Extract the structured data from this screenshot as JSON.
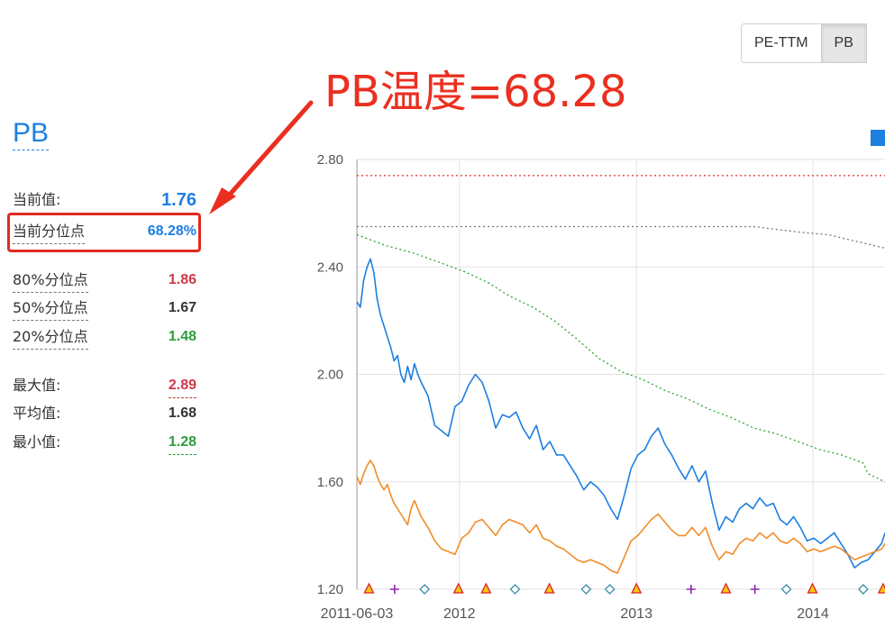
{
  "toggle": {
    "options": [
      "PE-TTM",
      "PB"
    ],
    "active_index": 1
  },
  "annotation": {
    "text": "PB温度=68.28",
    "color": "#ea2f20"
  },
  "stats": {
    "title": "PB",
    "current": {
      "label": "当前值:",
      "value": "1.76"
    },
    "current_pct": {
      "label": "当前分位点",
      "value": "68.28%"
    },
    "p80": {
      "label": "80%分位点",
      "value": "1.86"
    },
    "p50": {
      "label": "50%分位点",
      "value": "1.67"
    },
    "p20": {
      "label": "20%分位点",
      "value": "1.48"
    },
    "max": {
      "label": "最大值:",
      "value": "2.89"
    },
    "mean": {
      "label": "平均值:",
      "value": "1.68"
    },
    "min": {
      "label": "最小值:",
      "value": "1.28"
    }
  },
  "colors": {
    "blue": "#1d7fe0",
    "orange": "#f28c28",
    "green_dotted": "#2aa52a",
    "gray_dotted": "#777777",
    "red_dotted": "#e03030",
    "red_value": "#d0394a",
    "green_value": "#2e9c3c",
    "dark_value": "#333333"
  },
  "chart_data": {
    "type": "line",
    "y_ticks": [
      "2.80",
      "2.40",
      "2.00",
      "1.60",
      "1.20"
    ],
    "ylim": [
      1.2,
      2.8
    ],
    "x_ticks": [
      "2011-06-03",
      "2012",
      "2013",
      "2014"
    ],
    "x_tick_dates": [
      "2011-06-03",
      "2012-01-01",
      "2013-01-01",
      "2014-01-01"
    ],
    "grid": true,
    "series": [
      {
        "style": "solid",
        "color": "#1d7fe0",
        "points": [
          [
            "2011-06-03",
            2.27
          ],
          [
            "2011-06-10",
            2.25
          ],
          [
            "2011-06-17",
            2.35
          ],
          [
            "2011-06-24",
            2.4
          ],
          [
            "2011-07-01",
            2.43
          ],
          [
            "2011-07-08",
            2.38
          ],
          [
            "2011-07-15",
            2.28
          ],
          [
            "2011-07-22",
            2.22
          ],
          [
            "2011-07-29",
            2.18
          ],
          [
            "2011-08-05",
            2.14
          ],
          [
            "2011-08-12",
            2.1
          ],
          [
            "2011-08-19",
            2.05
          ],
          [
            "2011-08-26",
            2.07
          ],
          [
            "2011-09-02",
            2.0
          ],
          [
            "2011-09-09",
            1.97
          ],
          [
            "2011-09-16",
            2.03
          ],
          [
            "2011-09-23",
            1.98
          ],
          [
            "2011-09-30",
            2.04
          ],
          [
            "2011-10-07",
            2.0
          ],
          [
            "2011-10-14",
            1.97
          ],
          [
            "2011-10-28",
            1.92
          ],
          [
            "2011-11-11",
            1.81
          ],
          [
            "2011-11-25",
            1.79
          ],
          [
            "2011-12-09",
            1.77
          ],
          [
            "2011-12-23",
            1.88
          ],
          [
            "2012-01-06",
            1.9
          ],
          [
            "2012-01-20",
            1.96
          ],
          [
            "2012-02-03",
            2.0
          ],
          [
            "2012-02-17",
            1.97
          ],
          [
            "2012-03-02",
            1.9
          ],
          [
            "2012-03-16",
            1.8
          ],
          [
            "2012-03-30",
            1.85
          ],
          [
            "2012-04-13",
            1.84
          ],
          [
            "2012-04-27",
            1.86
          ],
          [
            "2012-05-11",
            1.8
          ],
          [
            "2012-05-25",
            1.76
          ],
          [
            "2012-06-08",
            1.81
          ],
          [
            "2012-06-22",
            1.72
          ],
          [
            "2012-07-06",
            1.75
          ],
          [
            "2012-07-20",
            1.7
          ],
          [
            "2012-08-03",
            1.7
          ],
          [
            "2012-08-17",
            1.66
          ],
          [
            "2012-08-31",
            1.62
          ],
          [
            "2012-09-14",
            1.57
          ],
          [
            "2012-09-28",
            1.6
          ],
          [
            "2012-10-12",
            1.58
          ],
          [
            "2012-10-26",
            1.55
          ],
          [
            "2012-11-09",
            1.5
          ],
          [
            "2012-11-23",
            1.46
          ],
          [
            "2012-12-07",
            1.55
          ],
          [
            "2012-12-21",
            1.65
          ],
          [
            "2013-01-04",
            1.7
          ],
          [
            "2013-01-18",
            1.72
          ],
          [
            "2013-02-01",
            1.77
          ],
          [
            "2013-02-15",
            1.8
          ],
          [
            "2013-03-01",
            1.74
          ],
          [
            "2013-03-15",
            1.7
          ],
          [
            "2013-03-29",
            1.65
          ],
          [
            "2013-04-12",
            1.61
          ],
          [
            "2013-04-26",
            1.66
          ],
          [
            "2013-05-10",
            1.6
          ],
          [
            "2013-05-24",
            1.64
          ],
          [
            "2013-06-07",
            1.52
          ],
          [
            "2013-06-21",
            1.42
          ],
          [
            "2013-07-05",
            1.47
          ],
          [
            "2013-07-19",
            1.45
          ],
          [
            "2013-08-02",
            1.5
          ],
          [
            "2013-08-16",
            1.52
          ],
          [
            "2013-08-30",
            1.5
          ],
          [
            "2013-09-13",
            1.54
          ],
          [
            "2013-09-27",
            1.51
          ],
          [
            "2013-10-11",
            1.52
          ],
          [
            "2013-10-25",
            1.46
          ],
          [
            "2013-11-08",
            1.44
          ],
          [
            "2013-11-22",
            1.47
          ],
          [
            "2013-12-06",
            1.43
          ],
          [
            "2013-12-20",
            1.38
          ],
          [
            "2014-01-03",
            1.39
          ],
          [
            "2014-01-17",
            1.37
          ],
          [
            "2014-01-31",
            1.39
          ],
          [
            "2014-02-14",
            1.41
          ],
          [
            "2014-02-28",
            1.37
          ],
          [
            "2014-03-14",
            1.33
          ],
          [
            "2014-03-28",
            1.28
          ],
          [
            "2014-04-11",
            1.3
          ],
          [
            "2014-04-25",
            1.31
          ],
          [
            "2014-05-09",
            1.34
          ],
          [
            "2014-05-23",
            1.37
          ],
          [
            "2014-05-30",
            1.41
          ]
        ]
      },
      {
        "style": "solid",
        "color": "#f28c28",
        "points": [
          [
            "2011-06-03",
            1.62
          ],
          [
            "2011-06-10",
            1.59
          ],
          [
            "2011-06-17",
            1.63
          ],
          [
            "2011-06-24",
            1.66
          ],
          [
            "2011-07-01",
            1.68
          ],
          [
            "2011-07-08",
            1.66
          ],
          [
            "2011-07-15",
            1.62
          ],
          [
            "2011-07-22",
            1.59
          ],
          [
            "2011-07-29",
            1.57
          ],
          [
            "2011-08-05",
            1.59
          ],
          [
            "2011-08-12",
            1.55
          ],
          [
            "2011-08-19",
            1.52
          ],
          [
            "2011-08-26",
            1.5
          ],
          [
            "2011-09-02",
            1.48
          ],
          [
            "2011-09-09",
            1.46
          ],
          [
            "2011-09-16",
            1.44
          ],
          [
            "2011-09-23",
            1.5
          ],
          [
            "2011-09-30",
            1.53
          ],
          [
            "2011-10-07",
            1.5
          ],
          [
            "2011-10-14",
            1.47
          ],
          [
            "2011-10-28",
            1.43
          ],
          [
            "2011-11-11",
            1.38
          ],
          [
            "2011-11-25",
            1.35
          ],
          [
            "2011-12-09",
            1.34
          ],
          [
            "2011-12-23",
            1.33
          ],
          [
            "2012-01-06",
            1.39
          ],
          [
            "2012-01-20",
            1.41
          ],
          [
            "2012-02-03",
            1.45
          ],
          [
            "2012-02-17",
            1.46
          ],
          [
            "2012-03-02",
            1.43
          ],
          [
            "2012-03-16",
            1.4
          ],
          [
            "2012-03-30",
            1.44
          ],
          [
            "2012-04-13",
            1.46
          ],
          [
            "2012-04-27",
            1.45
          ],
          [
            "2012-05-11",
            1.44
          ],
          [
            "2012-05-25",
            1.41
          ],
          [
            "2012-06-08",
            1.44
          ],
          [
            "2012-06-22",
            1.39
          ],
          [
            "2012-07-06",
            1.38
          ],
          [
            "2012-07-20",
            1.36
          ],
          [
            "2012-08-03",
            1.35
          ],
          [
            "2012-08-17",
            1.33
          ],
          [
            "2012-08-31",
            1.31
          ],
          [
            "2012-09-14",
            1.3
          ],
          [
            "2012-09-28",
            1.31
          ],
          [
            "2012-10-12",
            1.3
          ],
          [
            "2012-10-26",
            1.29
          ],
          [
            "2012-11-09",
            1.27
          ],
          [
            "2012-11-23",
            1.26
          ],
          [
            "2012-12-07",
            1.32
          ],
          [
            "2012-12-21",
            1.38
          ],
          [
            "2013-01-04",
            1.4
          ],
          [
            "2013-01-18",
            1.43
          ],
          [
            "2013-02-01",
            1.46
          ],
          [
            "2013-02-15",
            1.48
          ],
          [
            "2013-03-01",
            1.45
          ],
          [
            "2013-03-15",
            1.42
          ],
          [
            "2013-03-29",
            1.4
          ],
          [
            "2013-04-12",
            1.4
          ],
          [
            "2013-04-26",
            1.43
          ],
          [
            "2013-05-10",
            1.4
          ],
          [
            "2013-05-24",
            1.43
          ],
          [
            "2013-06-07",
            1.36
          ],
          [
            "2013-06-21",
            1.31
          ],
          [
            "2013-07-05",
            1.34
          ],
          [
            "2013-07-19",
            1.33
          ],
          [
            "2013-08-02",
            1.37
          ],
          [
            "2013-08-16",
            1.39
          ],
          [
            "2013-08-30",
            1.38
          ],
          [
            "2013-09-13",
            1.41
          ],
          [
            "2013-09-27",
            1.39
          ],
          [
            "2013-10-11",
            1.41
          ],
          [
            "2013-10-25",
            1.38
          ],
          [
            "2013-11-08",
            1.37
          ],
          [
            "2013-11-22",
            1.39
          ],
          [
            "2013-12-06",
            1.37
          ],
          [
            "2013-12-20",
            1.34
          ],
          [
            "2014-01-03",
            1.35
          ],
          [
            "2014-01-17",
            1.34
          ],
          [
            "2014-01-31",
            1.35
          ],
          [
            "2014-02-14",
            1.36
          ],
          [
            "2014-02-28",
            1.35
          ],
          [
            "2014-03-14",
            1.33
          ],
          [
            "2014-03-28",
            1.31
          ],
          [
            "2014-04-11",
            1.32
          ],
          [
            "2014-04-25",
            1.33
          ],
          [
            "2014-05-09",
            1.34
          ],
          [
            "2014-05-23",
            1.35
          ],
          [
            "2014-05-30",
            1.37
          ]
        ]
      },
      {
        "style": "dotted",
        "color": "#2aa52a",
        "points": [
          [
            "2011-06-03",
            2.52
          ],
          [
            "2011-08-01",
            2.48
          ],
          [
            "2011-10-01",
            2.45
          ],
          [
            "2011-12-01",
            2.41
          ],
          [
            "2012-01-15",
            2.38
          ],
          [
            "2012-03-01",
            2.34
          ],
          [
            "2012-04-15",
            2.29
          ],
          [
            "2012-06-01",
            2.25
          ],
          [
            "2012-07-15",
            2.2
          ],
          [
            "2012-09-01",
            2.13
          ],
          [
            "2012-10-15",
            2.06
          ],
          [
            "2012-12-01",
            2.01
          ],
          [
            "2013-01-15",
            1.98
          ],
          [
            "2013-03-01",
            1.94
          ],
          [
            "2013-04-15",
            1.91
          ],
          [
            "2013-06-01",
            1.87
          ],
          [
            "2013-07-15",
            1.84
          ],
          [
            "2013-09-01",
            1.8
          ],
          [
            "2013-10-15",
            1.78
          ],
          [
            "2013-12-01",
            1.75
          ],
          [
            "2014-01-15",
            1.72
          ],
          [
            "2014-03-01",
            1.7
          ],
          [
            "2014-04-15",
            1.67
          ],
          [
            "2014-04-25",
            1.63
          ],
          [
            "2014-05-30",
            1.6
          ]
        ]
      },
      {
        "style": "dotted",
        "color": "#777777",
        "points": [
          [
            "2011-06-03",
            2.55
          ],
          [
            "2012-06-01",
            2.55
          ],
          [
            "2013-01-01",
            2.55
          ],
          [
            "2013-09-01",
            2.55
          ],
          [
            "2013-12-01",
            2.53
          ],
          [
            "2014-02-01",
            2.52
          ],
          [
            "2014-05-30",
            2.47
          ]
        ]
      },
      {
        "style": "dotted",
        "color": "#e03030",
        "points": [
          [
            "2011-06-03",
            2.74
          ],
          [
            "2014-05-30",
            2.74
          ]
        ]
      }
    ],
    "markers": [
      {
        "date": "2011-06-28",
        "type": "triangle"
      },
      {
        "date": "2011-08-20",
        "type": "plus"
      },
      {
        "date": "2011-10-21",
        "type": "diamond"
      },
      {
        "date": "2011-12-30",
        "type": "triangle"
      },
      {
        "date": "2012-02-25",
        "type": "triangle"
      },
      {
        "date": "2012-04-25",
        "type": "diamond"
      },
      {
        "date": "2012-07-05",
        "type": "triangle"
      },
      {
        "date": "2012-09-19",
        "type": "diamond"
      },
      {
        "date": "2012-11-07",
        "type": "diamond"
      },
      {
        "date": "2013-01-01",
        "type": "triangle"
      },
      {
        "date": "2013-04-24",
        "type": "plus"
      },
      {
        "date": "2013-07-05",
        "type": "triangle"
      },
      {
        "date": "2013-09-03",
        "type": "plus"
      },
      {
        "date": "2013-11-07",
        "type": "diamond"
      },
      {
        "date": "2013-12-31",
        "type": "triangle"
      },
      {
        "date": "2014-04-15",
        "type": "diamond"
      },
      {
        "date": "2014-05-26",
        "type": "triangle"
      }
    ]
  }
}
